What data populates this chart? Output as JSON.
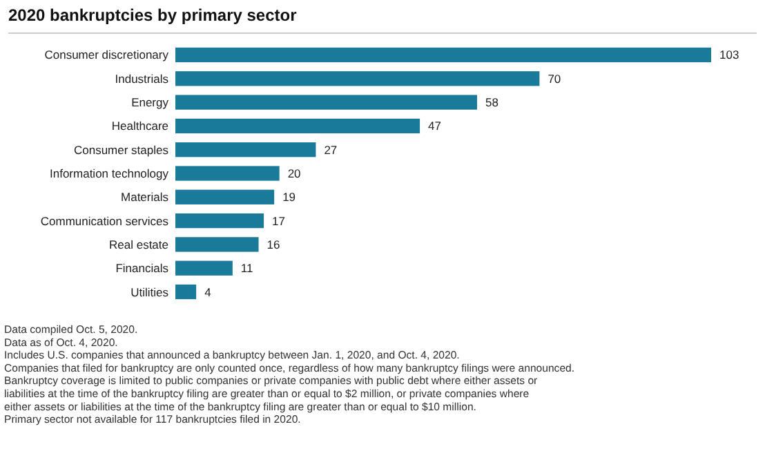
{
  "chart_data": {
    "type": "bar",
    "orientation": "horizontal",
    "title": "2020 bankruptcies by primary sector",
    "categories": [
      "Consumer discretionary",
      "Industrials",
      "Energy",
      "Healthcare",
      "Consumer staples",
      "Information technology",
      "Materials",
      "Communication services",
      "Real estate",
      "Financials",
      "Utilities"
    ],
    "values": [
      103,
      70,
      58,
      47,
      27,
      20,
      19,
      17,
      16,
      11,
      4
    ],
    "color": "#1a7a9a",
    "data_labels": true,
    "annotations": [
      "Data compiled Oct. 5, 2020.",
      "Data as of Oct. 4, 2020.",
      "Includes U.S. companies that announced a bankruptcy between Jan. 1, 2020, and Oct. 4, 2020.",
      "Companies that filed for bankruptcy are only counted once, regardless of how many bankruptcy filings were announced.",
      "Bankruptcy coverage is limited to public companies or private companies with public debt where either assets or liabilities at the time of the bankruptcy filing are greater than or equal to $2 million, or private companies where either assets or liabilities at the time of the bankruptcy filing are greater than or equal to $10 million.",
      "Primary sector not available for 117 bankruptcies filed in 2020."
    ]
  }
}
